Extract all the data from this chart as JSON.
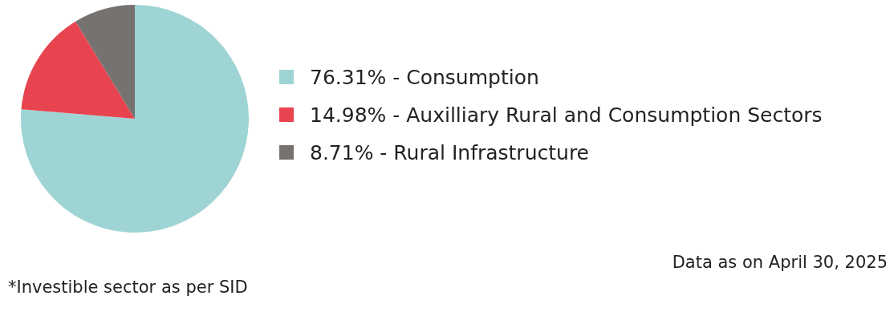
{
  "chart_data": {
    "type": "pie",
    "categories": [
      "76.31% - Consumption",
      "14.98% - Auxilliary Rural and Consumption Sectors",
      "8.71% - Rural Infrastructure"
    ],
    "values": [
      76.31,
      14.98,
      8.71
    ],
    "colors": [
      "#9fd4d4",
      "#e8444f",
      "#767270"
    ],
    "legend": "right",
    "annotations": [
      "Data as on April 30, 2025",
      "*Investible sector as per SID"
    ]
  }
}
